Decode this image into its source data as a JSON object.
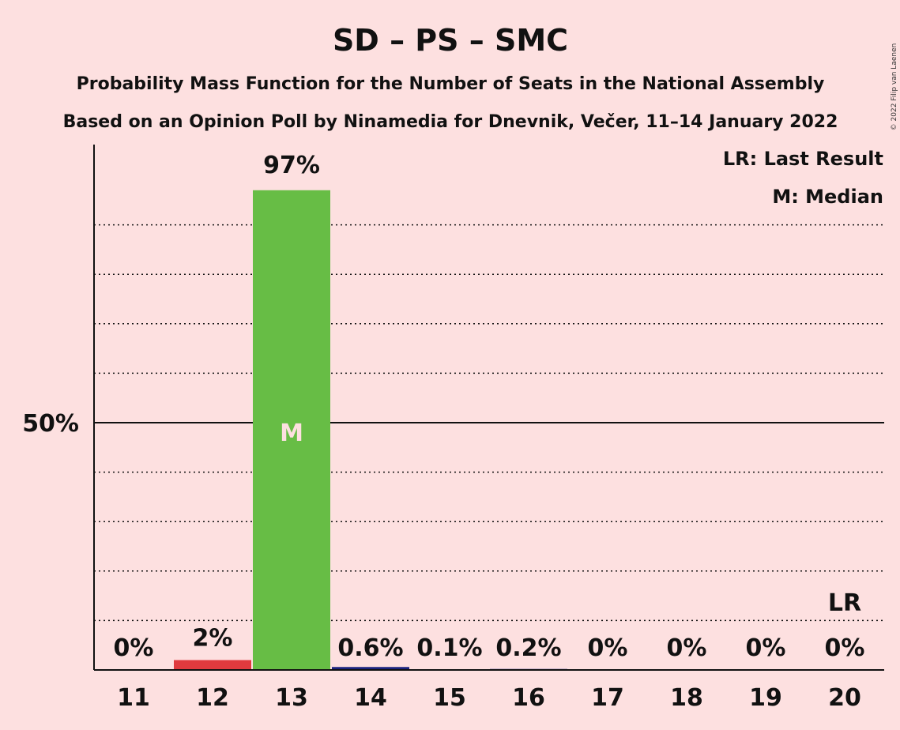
{
  "chart_data": {
    "type": "bar",
    "title": "SD – PS – SMC",
    "subtitle_1": "Probability Mass Function for the Number of Seats in the National Assembly",
    "subtitle_2": "Based on an Opinion Poll by Ninamedia for Dnevnik, Večer, 11–14 January 2022",
    "categories": [
      "11",
      "12",
      "13",
      "14",
      "15",
      "16",
      "17",
      "18",
      "19",
      "20"
    ],
    "values": [
      0,
      2,
      97,
      0.6,
      0.1,
      0.2,
      0,
      0,
      0,
      0
    ],
    "value_labels": [
      "0%",
      "2%",
      "97%",
      "0.6%",
      "0.1%",
      "0.2%",
      "0%",
      "0%",
      "0%",
      "0%"
    ],
    "bar_colors": [
      "#e03a3e",
      "#e03a3e",
      "#67bd45",
      "#1a237e",
      "#1a237e",
      "#1a237e",
      "#1a237e",
      "#1a237e",
      "#1a237e",
      "#1a237e"
    ],
    "ylim": [
      0,
      105
    ],
    "y_tick_label": "50%",
    "y_tick_value": 50,
    "minor_gridlines": [
      10,
      20,
      30,
      40,
      60,
      70,
      80,
      90
    ],
    "median_seat": "13",
    "median_marker": "M",
    "last_result_seat": "20",
    "last_result_marker": "LR",
    "legend": [
      "LR: Last Result",
      "M: Median"
    ],
    "legend_position": "top-right",
    "copyright": "© 2022 Filip van Laenen"
  }
}
